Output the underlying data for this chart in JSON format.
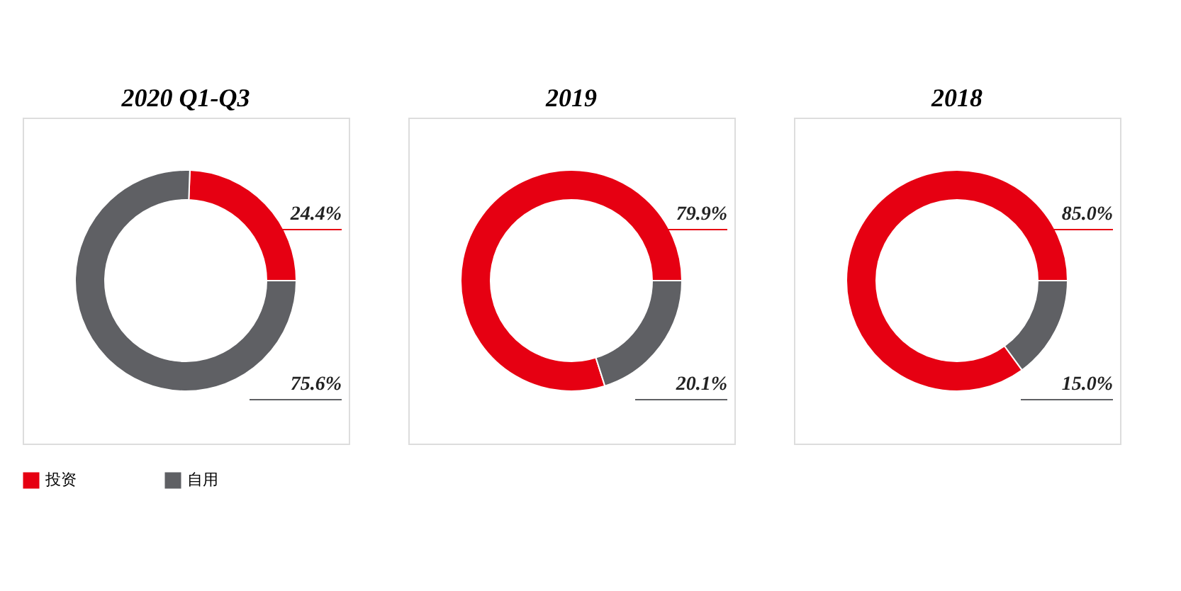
{
  "chart_data": [
    {
      "type": "donut",
      "title": "2020 Q1-Q3",
      "categories": [
        "投资",
        "自用"
      ],
      "values": [
        24.4,
        75.6
      ],
      "colors": [
        "#e60012",
        "#5f6064"
      ],
      "value_labels": [
        "24.4%",
        "75.6%"
      ],
      "legend": "bottom"
    },
    {
      "type": "donut",
      "title": "2019",
      "categories": [
        null,
        null
      ],
      "values": [
        79.9,
        20.1
      ],
      "colors": [
        "#e60012",
        "#5f6064"
      ],
      "value_labels": [
        "79.9%",
        "20.1%"
      ]
    },
    {
      "type": "donut",
      "title": "2018",
      "categories": [
        null,
        null
      ],
      "values": [
        85.0,
        15.0
      ],
      "colors": [
        "#e60012",
        "#5f6064"
      ],
      "value_labels": [
        "85.0%",
        "15.0%"
      ]
    }
  ]
}
